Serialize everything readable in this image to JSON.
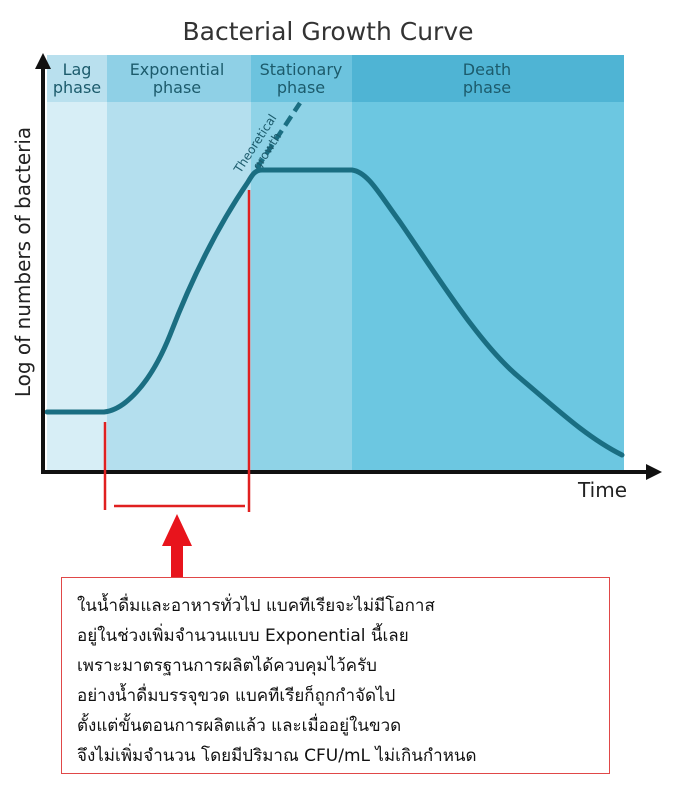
{
  "title": "Bacterial Growth Curve",
  "y_axis_label": "Log of numbers of bacteria",
  "x_axis_label": "Time",
  "phases": [
    {
      "line1": "Lag",
      "line2": "phase",
      "color": "#d7eef6",
      "header_color": "#b9e0ee"
    },
    {
      "line1": "Exponential",
      "line2": "phase",
      "color": "#b4dfee",
      "header_color": "#8fd0e6"
    },
    {
      "line1": "Stationary",
      "line2": "phase",
      "color": "#8fd3e7",
      "header_color": "#6cc3de"
    },
    {
      "line1": "Death",
      "line2": "phase",
      "color": "#6cc7e1",
      "header_color": "#4fb4d4"
    }
  ],
  "theoretical_growth": {
    "line1": "Theoretical",
    "line2": "growth"
  },
  "colors": {
    "curve": "#1a6e82",
    "header_text": "#1c5b6c",
    "axis": "#111111",
    "bracket": "#e02020",
    "arrow": "#e8141c",
    "note_border": "#e04848"
  },
  "note": {
    "lines": [
      "ในน้ำดื่มและอาหารทั่วไป แบคทีเรียจะไม่มีโอกาส",
      "อยู่ในช่วงเพิ่มจำนวนแบบ Exponential นี้เลย",
      "เพราะมาตรฐานการผลิตได้ควบคุมไว้ครับ",
      "อย่างน้ำดื่มบรรจุขวด แบคทีเรียก็ถูกกำจัดไป",
      "ตั้งแต่ขั้นตอนการผลิตแล้ว และเมื่ออยู่ในขวด",
      "จึงไม่เพิ่มจำนวน โดยมีปริมาณ CFU/mL ไม่เกินกำหนด"
    ]
  }
}
